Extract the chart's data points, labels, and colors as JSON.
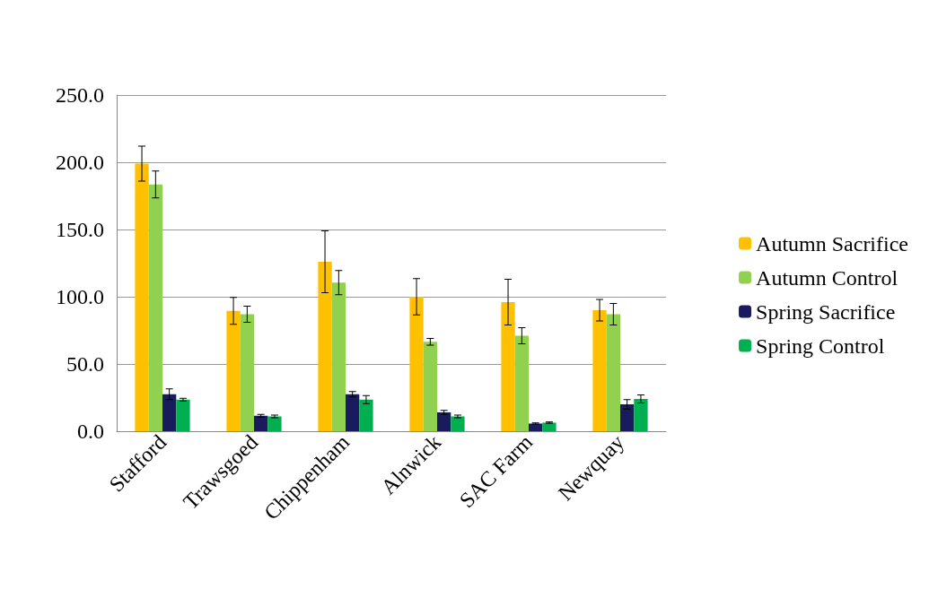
{
  "chart_data": {
    "type": "bar",
    "categories": [
      "Stafford",
      "Trawsgoed",
      "Chippenham",
      "Alnwick",
      "SAC Farm",
      "Newquay"
    ],
    "series": [
      {
        "name": "Autumn Sacrifice",
        "color": "#ffc000",
        "values": [
          199,
          89.5,
          126,
          100,
          96,
          90
        ],
        "errors": [
          13,
          10,
          23,
          13.5,
          17,
          8
        ]
      },
      {
        "name": "Autumn Control",
        "color": "#92d050",
        "values": [
          183.5,
          87,
          110.5,
          66.5,
          71,
          87
        ],
        "errors": [
          10,
          6,
          9,
          2.5,
          6,
          8
        ]
      },
      {
        "name": "Spring Sacrifice",
        "color": "#1a1a5e",
        "values": [
          27.5,
          11.5,
          27.5,
          14,
          5.7,
          20
        ],
        "errors": [
          4,
          1,
          2,
          1.5,
          0.5,
          3.5
        ]
      },
      {
        "name": "Spring Control",
        "color": "#00b050",
        "values": [
          23.5,
          11,
          23.5,
          11,
          6.4,
          24
        ],
        "errors": [
          1,
          1,
          3,
          1,
          0.5,
          3
        ]
      }
    ],
    "ylim": [
      0,
      250
    ],
    "yticks": [
      {
        "value": 0,
        "label": "0.0"
      },
      {
        "value": 50,
        "label": "50.0"
      },
      {
        "value": 100,
        "label": "100.0"
      },
      {
        "value": 150,
        "label": "150.0"
      },
      {
        "value": 200,
        "label": "200.0"
      },
      {
        "value": 250,
        "label": "250.0"
      }
    ],
    "grid": "y",
    "legend": "right"
  }
}
